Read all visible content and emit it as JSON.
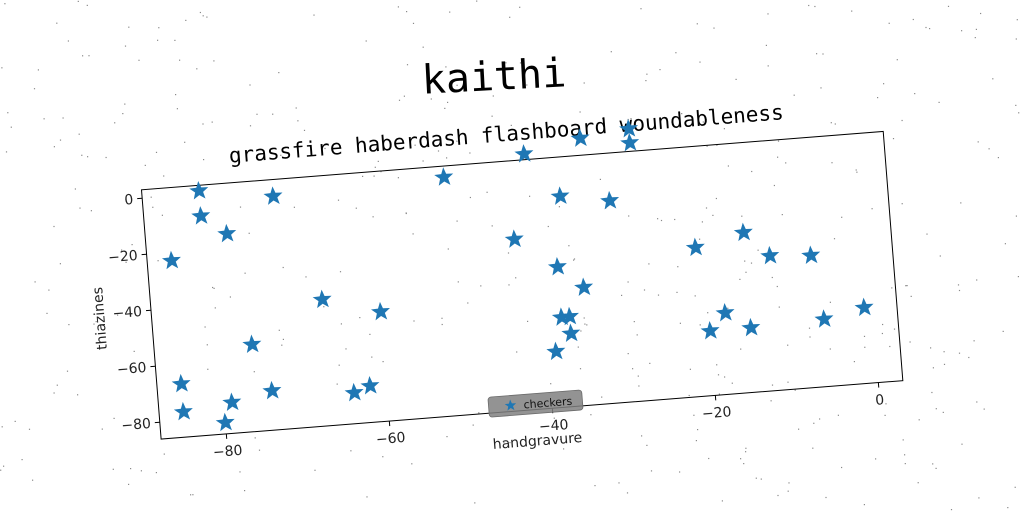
{
  "suptitle": "kaithi",
  "chart_data": {
    "type": "scatter",
    "title": "grassfire haberdash flashboard woundableness",
    "xlabel": "handgravure",
    "ylabel": "thiazines",
    "xlim": [
      -88,
      3
    ],
    "ylim": [
      -86,
      3
    ],
    "xticks": [
      -80,
      -60,
      -40,
      -20,
      0
    ],
    "yticks": [
      0,
      -20,
      -40,
      -60,
      -80
    ],
    "grid": false,
    "legend_position": "bottom-center",
    "series": [
      {
        "name": "checkers",
        "color": "#1f77b4",
        "marker": "star",
        "x": [
          -85,
          -81,
          -81,
          -78,
          -72,
          -51,
          -41,
          -34,
          -28,
          -28,
          -37,
          -31,
          -43,
          -38,
          -21,
          -15,
          -12,
          -7,
          -67,
          -60,
          -76,
          -85,
          -85,
          -79,
          -80,
          -74,
          -64,
          -62,
          -35,
          -38,
          -37,
          -37,
          -39,
          -20,
          -18,
          -15,
          -6,
          -1
        ],
        "y": [
          -23,
          1,
          -8,
          -15,
          -3,
          -1,
          5,
          9,
          11,
          6,
          -11,
          -14,
          -25,
          -36,
          -33,
          -29,
          -38,
          -39,
          -41,
          -47,
          -55,
          -67,
          -77,
          -75,
          -82,
          -72,
          -75,
          -73,
          -44,
          -54,
          -54,
          -60,
          -66,
          -63,
          -57,
          -63,
          -62,
          -59
        ]
      }
    ]
  }
}
